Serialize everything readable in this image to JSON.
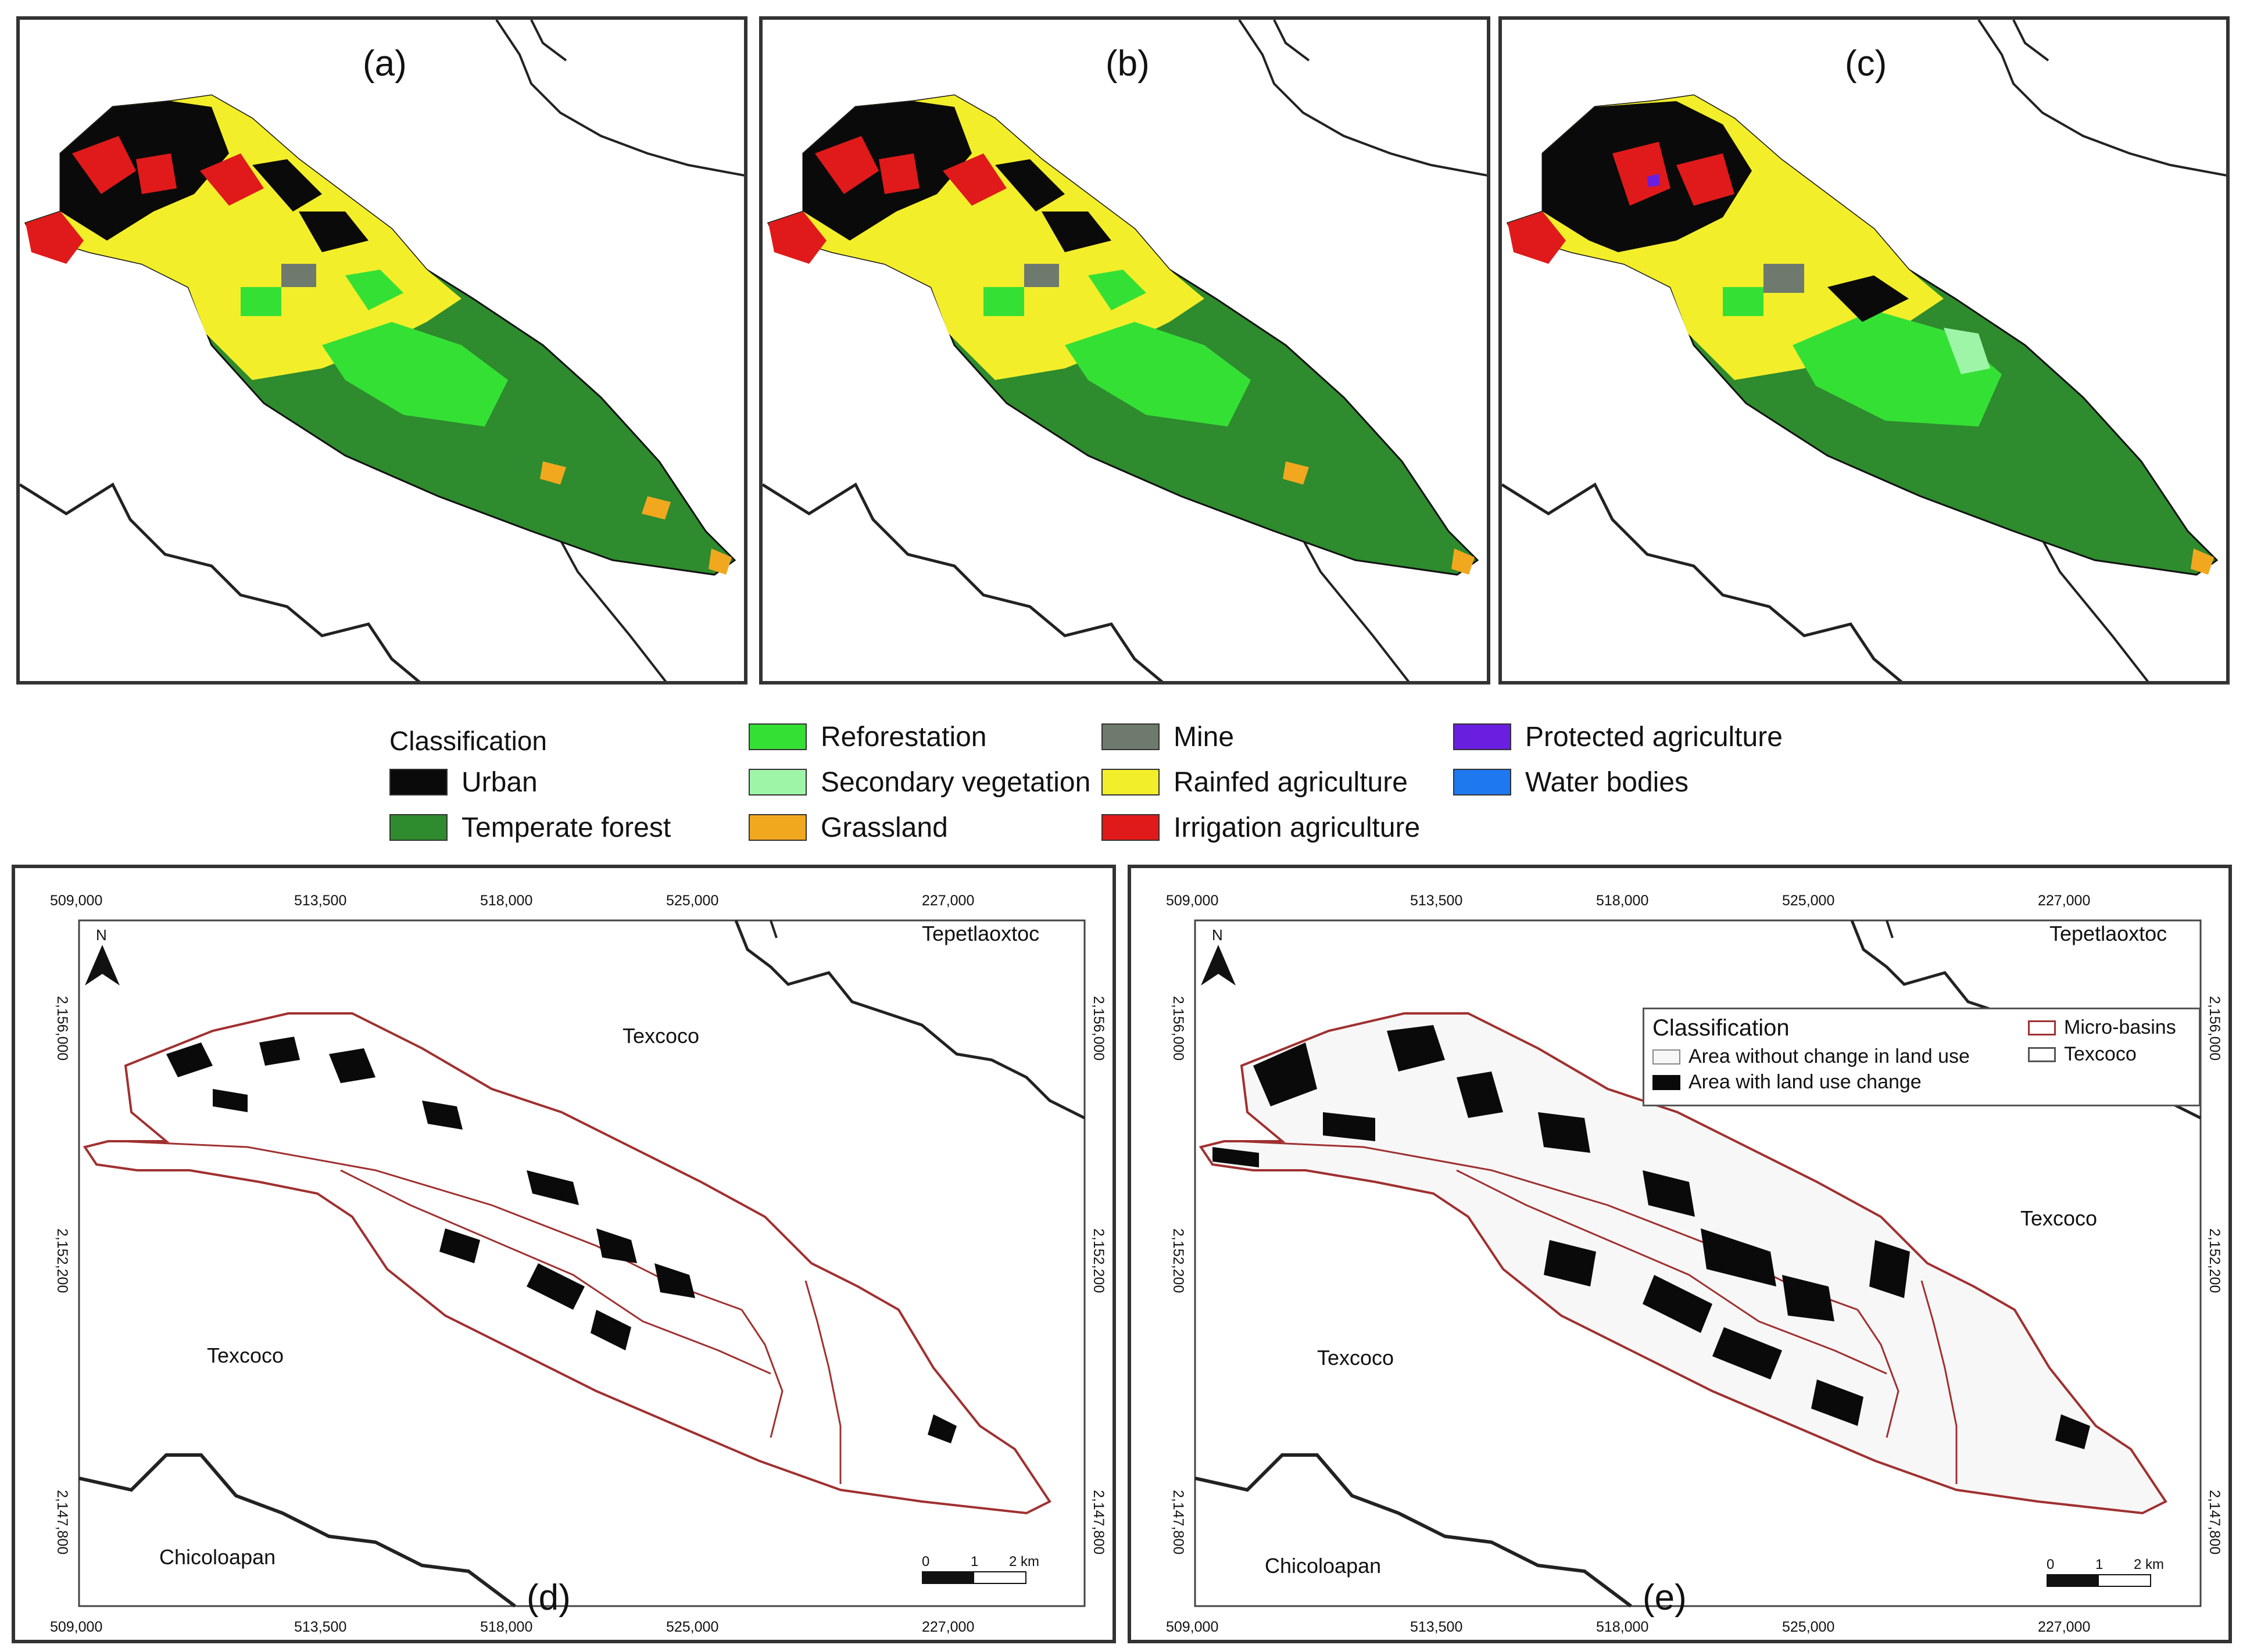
{
  "panels_top": [
    {
      "label": "(a)"
    },
    {
      "label": "(b)"
    },
    {
      "label": "(c)"
    }
  ],
  "legend": {
    "title": "Classification",
    "items": [
      {
        "label": "Urban",
        "color": "#0a0a0a"
      },
      {
        "label": "Temperate forest",
        "color": "#2e8b2e"
      },
      {
        "label": "Reforestation",
        "color": "#35e035"
      },
      {
        "label": "Secondary vegetation",
        "color": "#9ef5a8"
      },
      {
        "label": "Grassland",
        "color": "#f2a81e"
      },
      {
        "label": "Mine",
        "color": "#6d7a6d"
      },
      {
        "label": "Rainfed agriculture",
        "color": "#f3ee2a"
      },
      {
        "label": "Irrigation agriculture",
        "color": "#e01a1a"
      },
      {
        "label": "Protected agriculture",
        "color": "#6a1ee0"
      },
      {
        "label": "Water bodies",
        "color": "#1e78f0"
      }
    ]
  },
  "panels_bottom": [
    {
      "label": "(d)",
      "x_ticks": [
        "509,000",
        "513,500",
        "518,000",
        "525,000",
        "227,000"
      ],
      "y_ticks": [
        "2,156,000",
        "2,152,200",
        "2,147,800"
      ],
      "places": [
        "Tepetlaoxtoc",
        "Texcoco",
        "Texcoco",
        "Chicoloapan"
      ],
      "north": "N",
      "scale": [
        "0",
        "1",
        "2 km"
      ]
    },
    {
      "label": "(e)",
      "x_ticks": [
        "509,000",
        "513,500",
        "518,000",
        "525,000",
        "227,000"
      ],
      "y_ticks": [
        "2,156,000",
        "2,152,200",
        "2,147,800"
      ],
      "places": [
        "Tepetlaoxtoc",
        "Texcoco",
        "Texcoco",
        "Chicoloapan"
      ],
      "north": "N",
      "scale": [
        "0",
        "1",
        "2 km"
      ],
      "legend": {
        "title": "Classification",
        "items": [
          "Area without change in land use",
          "Area with land use change"
        ],
        "side": [
          "Micro-basins",
          "Texcoco"
        ]
      }
    }
  ],
  "colors": {
    "frame": "#333333",
    "basin_outline": "#a03030",
    "boundary": "#222222"
  }
}
